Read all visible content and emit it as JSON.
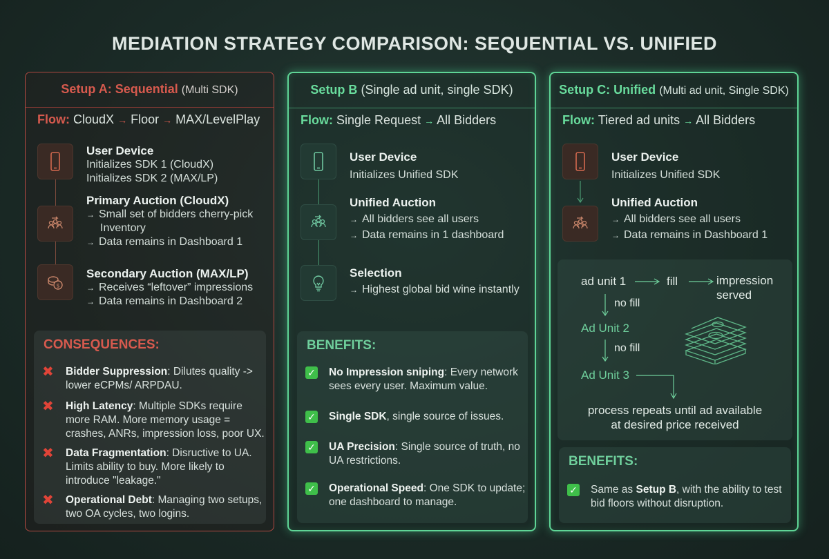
{
  "title": "MEDIATION STRATEGY COMPARISON: SEQUENTIAL VS. UNIFIED",
  "setup_a": {
    "title_main": "Setup A: Sequential",
    "title_sub": "(Multi SDK)",
    "flow_label": "Flow:",
    "flow_steps": [
      "CloudX",
      "Floor",
      "MAX/LevelPlay"
    ],
    "steps": [
      {
        "heading": "User Device",
        "lines": [
          "Initializes SDK 1 (CloudX)",
          "Initializes SDK 2 (MAX/LP)"
        ]
      },
      {
        "heading": "Primary Auction (CloudX)",
        "lines": [
          "Small set of bidders cherry-pick",
          "Inventory",
          "Data remains in Dashboard 1"
        ]
      },
      {
        "heading": "Secondary Auction (MAX/LP)",
        "lines": [
          "Receives “leftover” impressions",
          "Data remains in Dashboard 2"
        ]
      }
    ],
    "consequences_title": "CONSEQUENCES:",
    "consequences": [
      {
        "bold": "Bidder Suppression",
        "text": ": Dilutes quality -> lower eCPMs/ ARPDAU."
      },
      {
        "bold": "High Latency",
        "text": ": Multiple SDKs require more RAM. More memory usage = crashes, ANRs, impression loss, poor UX."
      },
      {
        "bold": "Data Fragmentation",
        "text": ": Disructive to UA. Limits ability to buy. More likely to introduce \"leakage.\""
      },
      {
        "bold": "Operational Debt",
        "text": ": Managing two setups, two OA cycles, two logins."
      }
    ]
  },
  "setup_b": {
    "title_main": "Setup B",
    "title_sub": "(Single ad unit, single SDK)",
    "flow_label": "Flow:",
    "flow_steps": [
      "Single Request",
      "All Bidders"
    ],
    "steps": [
      {
        "heading": "User Device",
        "lines": [
          "Initializes Unified SDK"
        ]
      },
      {
        "heading": "Unified Auction",
        "lines": [
          "All bidders see all users",
          "Data remains in 1 dashboard"
        ]
      },
      {
        "heading": "Selection",
        "lines": [
          "Highest global bid wine instantly"
        ]
      }
    ],
    "benefits_title": "BENEFITS:",
    "benefits": [
      {
        "bold": "No Impression sniping",
        "text": ": Every network sees every user. Maximum value."
      },
      {
        "bold": "Single SDK",
        "text": ", single source of issues."
      },
      {
        "bold": "UA Precision",
        "text": ": Single source of truth, no UA restrictions."
      },
      {
        "bold": "Operational Speed",
        "text": ": One SDK to update; one dashboard to manage."
      }
    ]
  },
  "setup_c": {
    "title_main": "Setup C: Unified",
    "title_sub": "(Multi ad unit, Single SDK)",
    "flow_label": "Flow:",
    "flow_steps": [
      "Tiered ad units",
      "All Bidders"
    ],
    "steps": [
      {
        "heading": "User Device",
        "lines": [
          "Initializes Unified SDK"
        ]
      },
      {
        "heading": "Unified Auction",
        "lines": [
          "All bidders see all users",
          "Data remains in Dashboard 1"
        ]
      }
    ],
    "waterfall": {
      "unit1": "ad unit 1",
      "fill": "fill",
      "impression": [
        "impression",
        "served"
      ],
      "no_fill_1": "no fill",
      "unit2": "Ad Unit 2",
      "no_fill_2": "no fill",
      "unit3": "Ad Unit 3",
      "process": [
        "process repeats until ad available",
        "at desired price received"
      ]
    },
    "benefits_title": "BENEFITS:",
    "benefits": [
      {
        "pre": "Same as ",
        "bold": "Setup B",
        "text": ", with the ability to test bid floors without disruption."
      }
    ]
  },
  "colors": {
    "accent_red": "#d75a4e",
    "accent_green": "#69dc9d",
    "x_mark": "#e04438",
    "check": "#3fbf4a"
  },
  "icons": [
    "smartphone-icon",
    "people-auction-icon",
    "coins-icon",
    "lightbulb-icon",
    "money-stack-icon",
    "x-mark-icon",
    "check-icon"
  ]
}
